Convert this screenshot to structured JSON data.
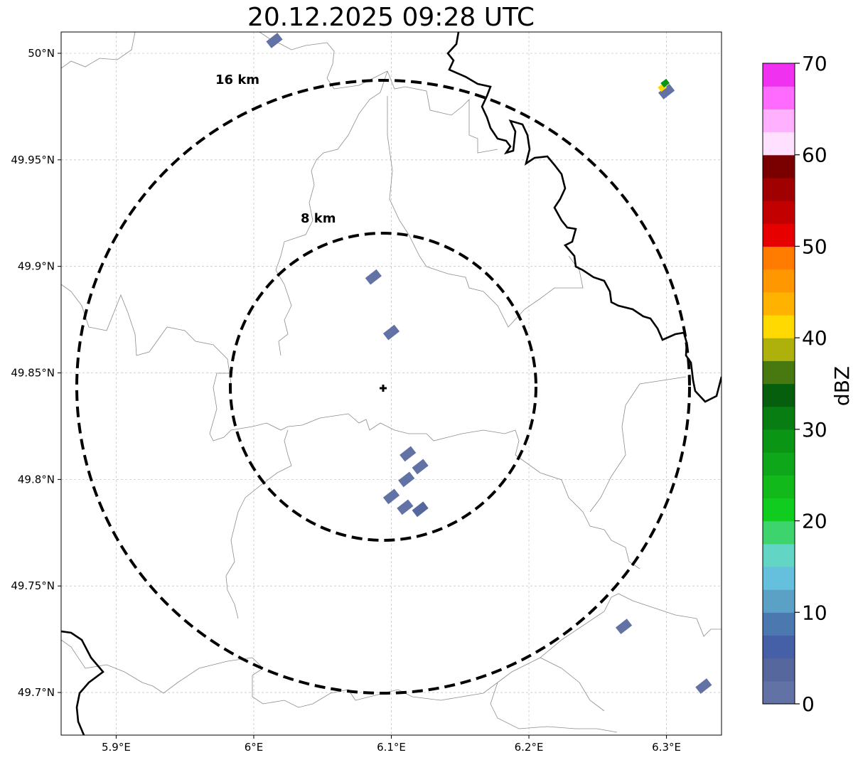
{
  "title": "20.12.2025 09:28 UTC",
  "map": {
    "lon_range": [
      5.86,
      6.34
    ],
    "lat_range": [
      49.68,
      50.01
    ],
    "lon_ticks": [
      {
        "value": 5.9,
        "label": "5.9°E"
      },
      {
        "value": 6.0,
        "label": "6°E"
      },
      {
        "value": 6.1,
        "label": "6.1°E"
      },
      {
        "value": 6.2,
        "label": "6.2°E"
      },
      {
        "value": 6.3,
        "label": "6.3°E"
      }
    ],
    "lat_ticks": [
      {
        "value": 50.0,
        "label": "50°N"
      },
      {
        "value": 49.95,
        "label": "49.95°N"
      },
      {
        "value": 49.9,
        "label": "49.9°N"
      },
      {
        "value": 49.85,
        "label": "49.85°N"
      },
      {
        "value": 49.8,
        "label": "49.8°N"
      },
      {
        "value": 49.75,
        "label": "49.75°N"
      },
      {
        "value": 49.7,
        "label": "49.7°N"
      }
    ],
    "radar_site": {
      "lon": 6.095,
      "lat": 49.843
    },
    "range_rings": [
      {
        "km": 8,
        "label": "8 km"
      },
      {
        "km": 16,
        "label": "16 km"
      }
    ],
    "grid": true
  },
  "colorbar": {
    "label": "dBZ",
    "min": 0,
    "max": 70,
    "tick_values": [
      0,
      10,
      20,
      30,
      40,
      50,
      60,
      70
    ],
    "tick_labels": [
      "0",
      "10",
      "20",
      "30",
      "40",
      "50",
      "60",
      "70"
    ],
    "colors": [
      "#6272a4",
      "#56679e",
      "#4660a8",
      "#4b78ae",
      "#5ba1c6",
      "#64c0dd",
      "#62d5c5",
      "#3ed46d",
      "#10cc1e",
      "#11b91b",
      "#0ea719",
      "#0b9515",
      "#087d12",
      "#065f0d",
      "#487911",
      "#aeb00b",
      "#ffd900",
      "#ffb300",
      "#ff9800",
      "#ff7c00",
      "#e60000",
      "#c20000",
      "#a00000",
      "#7a0000",
      "#ffe0ff",
      "#ffb0ff",
      "#ff6bff",
      "#f032f0"
    ]
  },
  "echoes": [
    {
      "lon": 6.087,
      "lat": 49.895,
      "dbz": 2
    },
    {
      "lon": 6.1,
      "lat": 49.869,
      "dbz": 2
    },
    {
      "lon": 6.112,
      "lat": 49.812,
      "dbz": 2
    },
    {
      "lon": 6.121,
      "lat": 49.806,
      "dbz": 2
    },
    {
      "lon": 6.111,
      "lat": 49.8,
      "dbz": 2
    },
    {
      "lon": 6.1,
      "lat": 49.792,
      "dbz": 2
    },
    {
      "lon": 6.11,
      "lat": 49.787,
      "dbz": 2
    },
    {
      "lon": 6.121,
      "lat": 49.786,
      "dbz": 3
    },
    {
      "lon": 6.015,
      "lat": 50.006,
      "dbz": 2
    },
    {
      "lon": 6.3,
      "lat": 49.982,
      "dbz": 2
    },
    {
      "lon": 6.297,
      "lat": 49.984,
      "dbz": 42
    },
    {
      "lon": 6.299,
      "lat": 49.986,
      "dbz": 28
    },
    {
      "lon": 6.269,
      "lat": 49.731,
      "dbz": 2
    },
    {
      "lon": 6.327,
      "lat": 49.703,
      "dbz": 2
    }
  ]
}
